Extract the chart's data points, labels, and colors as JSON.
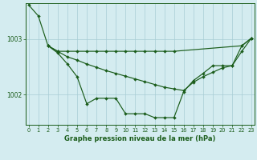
{
  "background_color": "#d4ecf0",
  "grid_color": "#a8cdd5",
  "line_color": "#1a5c1a",
  "xlabel": "Graphe pression niveau de la mer (hPa)",
  "ylim": [
    1001.45,
    1003.65
  ],
  "xlim": [
    -0.3,
    23.3
  ],
  "y_ticks": [
    1002,
    1003
  ],
  "x_ticks": [
    0,
    1,
    2,
    3,
    4,
    5,
    6,
    7,
    8,
    9,
    10,
    11,
    12,
    13,
    14,
    15,
    16,
    17,
    18,
    19,
    20,
    21,
    22,
    23
  ],
  "series1": [
    1003.62,
    1003.42,
    1002.88,
    1002.75,
    1002.55,
    1002.32,
    1001.83,
    1001.93,
    1001.93,
    1001.93,
    1001.65,
    1001.65,
    1001.65,
    1001.58,
    1001.58,
    1001.58,
    1002.05,
    1002.25,
    1002.38,
    1002.52,
    1002.52,
    1002.52,
    1002.88,
    1003.02
  ],
  "series2_x": [
    2,
    3,
    4,
    5,
    6,
    7,
    8,
    9,
    10,
    11,
    12,
    13,
    14,
    15,
    22,
    23
  ],
  "series2_y": [
    1002.88,
    1002.78,
    1002.78,
    1002.78,
    1002.78,
    1002.78,
    1002.78,
    1002.78,
    1002.78,
    1002.78,
    1002.78,
    1002.78,
    1002.78,
    1002.78,
    1002.88,
    1003.02
  ],
  "series3_x": [
    2,
    3,
    4,
    5,
    6,
    7,
    8,
    9,
    10,
    11,
    12,
    13,
    14,
    15,
    16,
    17,
    18,
    19,
    20,
    21,
    22,
    23
  ],
  "series3_y": [
    1002.88,
    1002.78,
    1002.68,
    1002.62,
    1002.55,
    1002.49,
    1002.43,
    1002.38,
    1002.33,
    1002.28,
    1002.23,
    1002.18,
    1002.13,
    1002.1,
    1002.07,
    1002.22,
    1002.32,
    1002.4,
    1002.48,
    1002.52,
    1002.78,
    1003.02
  ]
}
